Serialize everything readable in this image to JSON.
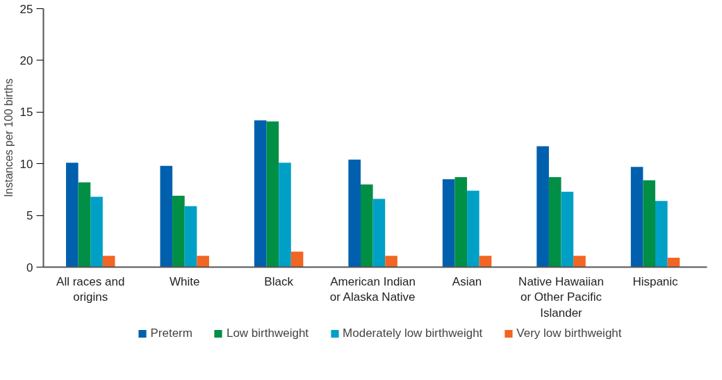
{
  "chart_data": {
    "type": "bar",
    "ylabel": "Instances per 100 births",
    "categories": [
      "All races and origins",
      "White",
      "Black",
      "American Indian or Alaska Native",
      "Asian",
      "Native Hawaiian or Other Pacific Islander",
      "Hispanic"
    ],
    "series": [
      {
        "name": "Preterm",
        "color": "#0060ae",
        "values": [
          10.1,
          9.8,
          14.2,
          10.4,
          8.5,
          11.7,
          9.7
        ]
      },
      {
        "name": "Low birthweight",
        "color": "#008f45",
        "values": [
          8.2,
          6.9,
          14.1,
          8.0,
          8.7,
          8.7,
          8.4
        ]
      },
      {
        "name": "Moderately low birthweight",
        "color": "#00a0c6",
        "values": [
          6.8,
          5.9,
          10.1,
          6.6,
          7.4,
          7.3,
          6.4
        ]
      },
      {
        "name": "Very low birthweight",
        "color": "#f26522",
        "values": [
          1.1,
          1.1,
          1.5,
          1.1,
          1.1,
          1.1,
          0.9
        ]
      }
    ],
    "ylim": [
      0,
      25
    ],
    "yticks": [
      0,
      5,
      10,
      15,
      20,
      25
    ],
    "grid": false,
    "legend": "bottom"
  }
}
